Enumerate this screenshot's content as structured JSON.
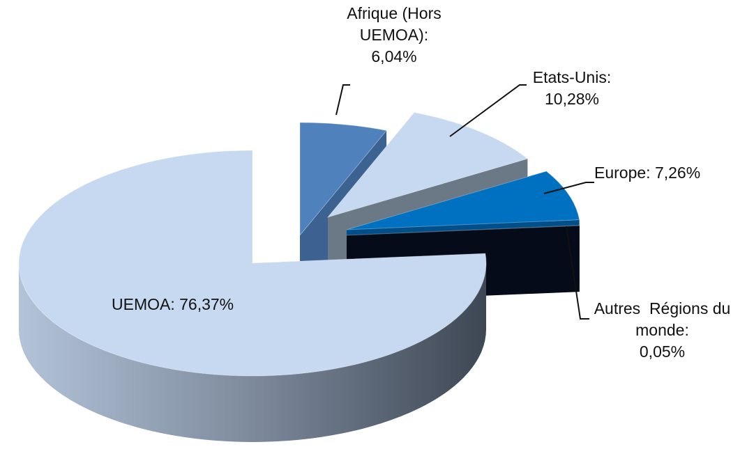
{
  "chart_data": {
    "type": "pie3d",
    "categories": [
      "Afrique (Hors UEMOA):",
      "Etats-Unis:",
      "Europe:",
      "Autres  Régions du monde:",
      "UEMOA:"
    ],
    "values": [
      6.04,
      10.28,
      7.26,
      0.05,
      76.37
    ],
    "value_labels": [
      "6,04%",
      "10,28%",
      "7,26%",
      "0,05%",
      "76,37%"
    ],
    "colors": [
      "#4f81bd",
      "#c6d9f0",
      "#0070c0",
      "#0d1a33",
      "#c6d9f1"
    ]
  }
}
